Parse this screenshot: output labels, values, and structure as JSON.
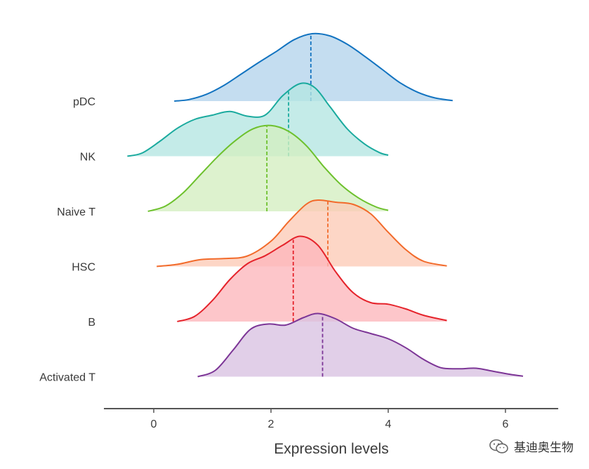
{
  "chart_data": {
    "type": "ridgeline",
    "xlabel": "Expression levels",
    "xlim": [
      -0.85,
      6.9
    ],
    "xticks": [
      0,
      2,
      4,
      6
    ],
    "series": [
      {
        "name": "pDC",
        "color": "#1273C0",
        "fill": "#B4D4EC",
        "mean": 2.68,
        "peak": 1.28,
        "density": [
          [
            0.35,
            0
          ],
          [
            0.6,
            0.03
          ],
          [
            0.9,
            0.13
          ],
          [
            1.2,
            0.3
          ],
          [
            1.5,
            0.52
          ],
          [
            1.8,
            0.74
          ],
          [
            2.1,
            0.95
          ],
          [
            2.4,
            1.17
          ],
          [
            2.7,
            1.28
          ],
          [
            3.0,
            1.24
          ],
          [
            3.3,
            1.08
          ],
          [
            3.6,
            0.85
          ],
          [
            3.9,
            0.6
          ],
          [
            4.2,
            0.35
          ],
          [
            4.5,
            0.17
          ],
          [
            4.8,
            0.06
          ],
          [
            5.1,
            0.01
          ]
        ]
      },
      {
        "name": "NK",
        "color": "#1AAA9E",
        "fill": "#B3E6E1",
        "mean": 2.3,
        "peak": 1.38,
        "density": [
          [
            -0.45,
            0
          ],
          [
            -0.2,
            0.06
          ],
          [
            0.1,
            0.28
          ],
          [
            0.4,
            0.53
          ],
          [
            0.7,
            0.7
          ],
          [
            1.0,
            0.78
          ],
          [
            1.3,
            0.85
          ],
          [
            1.6,
            0.76
          ],
          [
            1.9,
            0.78
          ],
          [
            2.2,
            1.15
          ],
          [
            2.5,
            1.38
          ],
          [
            2.75,
            1.3
          ],
          [
            3.0,
            0.95
          ],
          [
            3.3,
            0.52
          ],
          [
            3.6,
            0.23
          ],
          [
            3.85,
            0.07
          ],
          [
            4.0,
            0.02
          ]
        ]
      },
      {
        "name": "Naive T",
        "color": "#6DC12D",
        "fill": "#D3EEC0",
        "mean": 1.93,
        "peak": 1.63,
        "density": [
          [
            -0.1,
            0
          ],
          [
            0.2,
            0.1
          ],
          [
            0.5,
            0.35
          ],
          [
            0.8,
            0.7
          ],
          [
            1.1,
            1.05
          ],
          [
            1.4,
            1.35
          ],
          [
            1.7,
            1.57
          ],
          [
            2.0,
            1.63
          ],
          [
            2.3,
            1.52
          ],
          [
            2.6,
            1.25
          ],
          [
            2.9,
            0.85
          ],
          [
            3.2,
            0.5
          ],
          [
            3.5,
            0.25
          ],
          [
            3.8,
            0.08
          ],
          [
            4.0,
            0.02
          ]
        ]
      },
      {
        "name": "HSC",
        "color": "#F26A2A",
        "fill": "#FDCAB6",
        "mean": 2.97,
        "peak": 1.26,
        "density": [
          [
            0.05,
            0
          ],
          [
            0.4,
            0.04
          ],
          [
            0.8,
            0.13
          ],
          [
            1.2,
            0.15
          ],
          [
            1.6,
            0.2
          ],
          [
            2.0,
            0.48
          ],
          [
            2.3,
            0.85
          ],
          [
            2.6,
            1.18
          ],
          [
            2.8,
            1.26
          ],
          [
            3.1,
            1.22
          ],
          [
            3.4,
            1.18
          ],
          [
            3.7,
            1.0
          ],
          [
            4.0,
            0.65
          ],
          [
            4.3,
            0.32
          ],
          [
            4.6,
            0.1
          ],
          [
            5.0,
            0.01
          ]
        ]
      },
      {
        "name": "B",
        "color": "#E5232B",
        "fill": "#FDB6BB",
        "mean": 2.38,
        "peak": 1.62,
        "density": [
          [
            0.4,
            0
          ],
          [
            0.7,
            0.1
          ],
          [
            1.0,
            0.4
          ],
          [
            1.3,
            0.8
          ],
          [
            1.6,
            1.1
          ],
          [
            1.9,
            1.25
          ],
          [
            2.2,
            1.45
          ],
          [
            2.5,
            1.62
          ],
          [
            2.8,
            1.45
          ],
          [
            3.1,
            0.95
          ],
          [
            3.4,
            0.55
          ],
          [
            3.7,
            0.36
          ],
          [
            4.0,
            0.33
          ],
          [
            4.3,
            0.24
          ],
          [
            4.6,
            0.12
          ],
          [
            5.0,
            0.02
          ]
        ]
      },
      {
        "name": "Activated T",
        "color": "#7C3596",
        "fill": "#D8C2E2",
        "mean": 2.88,
        "peak": 1.2,
        "density": [
          [
            0.75,
            0
          ],
          [
            1.05,
            0.12
          ],
          [
            1.35,
            0.5
          ],
          [
            1.65,
            0.9
          ],
          [
            1.95,
            1.0
          ],
          [
            2.25,
            0.98
          ],
          [
            2.55,
            1.12
          ],
          [
            2.8,
            1.2
          ],
          [
            3.1,
            1.1
          ],
          [
            3.4,
            0.92
          ],
          [
            3.7,
            0.82
          ],
          [
            4.0,
            0.72
          ],
          [
            4.3,
            0.55
          ],
          [
            4.6,
            0.33
          ],
          [
            4.9,
            0.17
          ],
          [
            5.2,
            0.15
          ],
          [
            5.5,
            0.16
          ],
          [
            5.8,
            0.1
          ],
          [
            6.1,
            0.04
          ],
          [
            6.3,
            0.01
          ]
        ]
      }
    ]
  },
  "watermark": {
    "icon": "wechat-icon",
    "text": "基迪奥生物"
  }
}
